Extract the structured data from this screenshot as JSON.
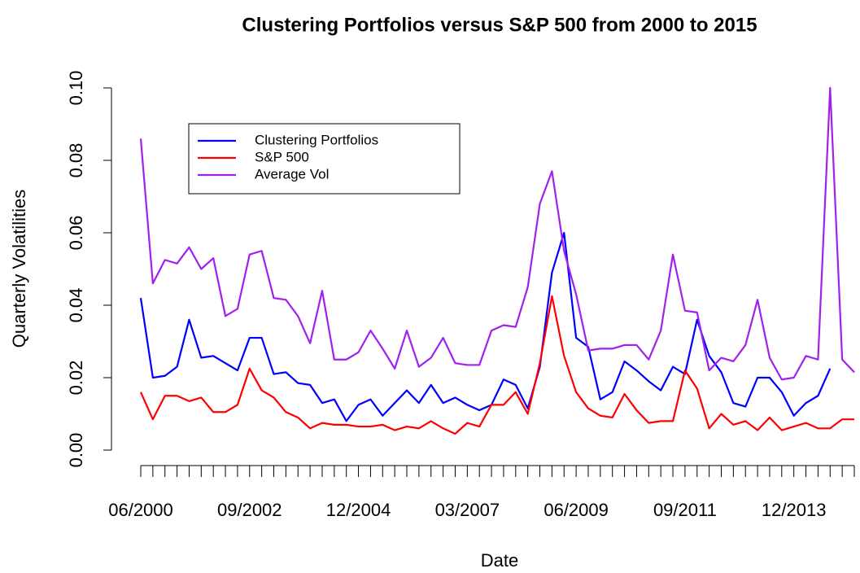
{
  "chart_data": {
    "type": "line",
    "title": "Clustering Portfolios versus S&P 500 from 2000 to 2015",
    "x_label": "Date",
    "y_label": "Quarterly Volatilities",
    "categories": [
      "06/2000",
      null,
      null,
      null,
      null,
      null,
      null,
      null,
      null,
      "09/2002",
      null,
      null,
      null,
      null,
      null,
      null,
      null,
      null,
      "12/2004",
      null,
      null,
      null,
      null,
      null,
      null,
      null,
      null,
      "03/2007",
      null,
      null,
      null,
      null,
      null,
      null,
      null,
      null,
      "06/2009",
      null,
      null,
      null,
      null,
      null,
      null,
      null,
      null,
      "09/2011",
      null,
      null,
      null,
      null,
      null,
      null,
      null,
      null,
      "12/2013",
      null,
      null,
      null,
      null,
      null
    ],
    "series": [
      {
        "name": "Clustering Portfolios",
        "color": "#0000ff",
        "values": [
          0.042,
          0.02,
          0.0205,
          0.023,
          0.036,
          0.0255,
          0.026,
          0.024,
          0.022,
          0.031,
          0.031,
          0.021,
          0.0215,
          0.0185,
          0.018,
          0.013,
          0.014,
          0.008,
          0.0125,
          0.014,
          0.0095,
          0.013,
          0.0165,
          0.013,
          0.018,
          0.013,
          0.0145,
          0.0125,
          0.011,
          0.0125,
          0.0195,
          0.018,
          0.0115,
          0.023,
          0.049,
          0.06,
          0.031,
          0.0285,
          0.014,
          0.016,
          0.0245,
          0.022,
          0.019,
          0.0165,
          0.023,
          0.021,
          0.036,
          0.026,
          0.0215,
          0.013,
          0.012,
          0.02,
          0.02,
          0.016,
          0.0095,
          0.013,
          0.015,
          0.0225,
          null,
          null
        ]
      },
      {
        "name": "S&P 500",
        "color": "#ff0000",
        "values": [
          0.016,
          0.0085,
          0.015,
          0.015,
          0.0135,
          0.0145,
          0.0105,
          0.0105,
          0.0125,
          0.0225,
          0.0165,
          0.0145,
          0.0105,
          0.009,
          0.006,
          0.0075,
          0.007,
          0.007,
          0.0065,
          0.0065,
          0.007,
          0.0055,
          0.0065,
          0.006,
          0.008,
          0.006,
          0.0045,
          0.0075,
          0.0065,
          0.0125,
          0.0125,
          0.016,
          0.01,
          0.024,
          0.0425,
          0.026,
          0.016,
          0.0115,
          0.0095,
          0.009,
          0.0155,
          0.011,
          0.0075,
          0.008,
          0.008,
          0.022,
          0.017,
          0.006,
          0.01,
          0.007,
          0.008,
          0.0055,
          0.009,
          0.0055,
          0.0065,
          0.0075,
          0.006,
          0.006,
          0.0085,
          0.0085
        ]
      },
      {
        "name": "Average Vol",
        "color": "#a020f0",
        "values": [
          0.086,
          0.046,
          0.0525,
          0.0515,
          0.056,
          0.05,
          0.053,
          0.037,
          0.039,
          0.054,
          0.055,
          0.042,
          0.0415,
          0.037,
          0.0295,
          0.044,
          0.025,
          0.025,
          0.027,
          0.033,
          0.028,
          0.0225,
          0.033,
          0.023,
          0.0255,
          0.031,
          0.024,
          0.0235,
          0.0235,
          0.033,
          0.0345,
          0.034,
          0.045,
          0.068,
          0.077,
          0.055,
          0.043,
          0.0275,
          0.028,
          0.028,
          0.029,
          0.029,
          0.025,
          0.033,
          0.054,
          0.0385,
          0.038,
          0.022,
          0.0255,
          0.0245,
          0.029,
          0.0415,
          0.0255,
          0.0195,
          0.02,
          0.026,
          0.025,
          0.1,
          0.025,
          0.0215
        ]
      }
    ],
    "ylim": [
      0,
      0.1
    ],
    "yticks": [
      {
        "value": 0,
        "label": "0.00"
      },
      {
        "value": 0.02,
        "label": "0.02"
      },
      {
        "value": 0.04,
        "label": "0.04"
      },
      {
        "value": 0.06,
        "label": "0.06"
      },
      {
        "value": 0.08,
        "label": "0.08"
      },
      {
        "value": 0.1,
        "label": "0.10"
      }
    ],
    "grid": false,
    "legend_position": "upper left"
  }
}
